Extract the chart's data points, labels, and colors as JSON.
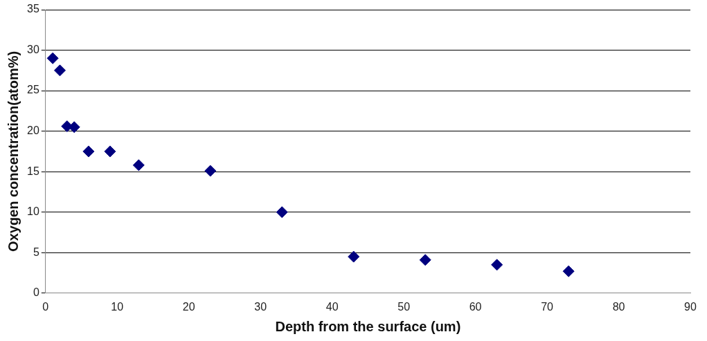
{
  "chart_data": {
    "type": "scatter",
    "xlabel": "Depth from the surface (um)",
    "ylabel": "Oxygen concentration(atom%)",
    "x": [
      1,
      2,
      3,
      4,
      6,
      9,
      13,
      23,
      33,
      43,
      53,
      63,
      73
    ],
    "series": [
      {
        "color": "#00007f",
        "values": [
          29.0,
          27.5,
          20.6,
          20.5,
          17.5,
          17.5,
          15.8,
          15.1,
          10.0,
          4.5,
          4.1,
          3.5,
          2.7
        ]
      }
    ],
    "xlim": [
      0,
      90
    ],
    "xticks": [
      0,
      10,
      20,
      30,
      40,
      50,
      60,
      70,
      80,
      90
    ],
    "ylim": [
      0,
      35
    ],
    "yticks": [
      0,
      5,
      10,
      15,
      20,
      25,
      30,
      35
    ],
    "grid": "y",
    "legend": false,
    "marker": "diamond"
  }
}
